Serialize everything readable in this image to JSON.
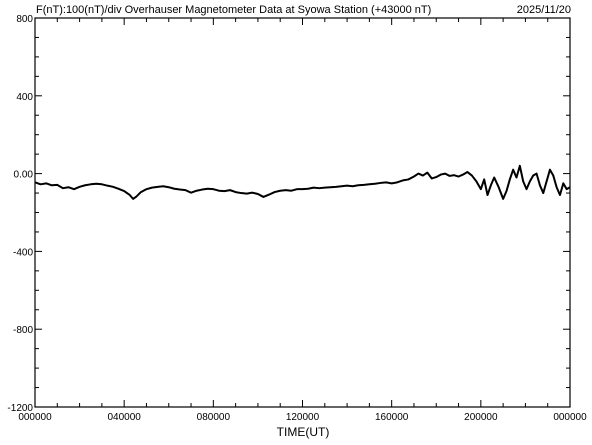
{
  "header": {
    "left_title": "F(nT):100(nT)/div  Overhauser Magnetometer Data at Syowa Station (+43000 nT)",
    "date": "2025/11/20"
  },
  "chart_data": {
    "type": "line",
    "title": "F(nT):100(nT)/div  Overhauser Magnetometer Data at Syowa Station (+43000 nT)",
    "date_label": "2025/11/20",
    "xlabel": "TIME(UT)",
    "ylabel": "",
    "x_unit": "hours UT",
    "xlim": [
      0,
      24
    ],
    "ylim": [
      -1200,
      800
    ],
    "grid": false,
    "x_ticks": [
      {
        "value": 0,
        "label": "000000"
      },
      {
        "value": 4,
        "label": "040000"
      },
      {
        "value": 8,
        "label": "080000"
      },
      {
        "value": 12,
        "label": "120000"
      },
      {
        "value": 16,
        "label": "160000"
      },
      {
        "value": 20,
        "label": "200000"
      },
      {
        "value": 24,
        "label": "000000"
      }
    ],
    "y_ticks": [
      {
        "value": 800,
        "label": "800"
      },
      {
        "value": 400,
        "label": "400"
      },
      {
        "value": 0,
        "label": "0.00"
      },
      {
        "value": -400,
        "label": "-400"
      },
      {
        "value": -800,
        "label": "-800"
      },
      {
        "value": -1200,
        "label": "-1200"
      }
    ],
    "series": [
      {
        "color": "#000000",
        "points": [
          [
            0.0,
            -45
          ],
          [
            0.25,
            -55
          ],
          [
            0.5,
            -50
          ],
          [
            0.75,
            -60
          ],
          [
            1.0,
            -58
          ],
          [
            1.25,
            -75
          ],
          [
            1.5,
            -70
          ],
          [
            1.75,
            -80
          ],
          [
            2.0,
            -68
          ],
          [
            2.25,
            -60
          ],
          [
            2.5,
            -55
          ],
          [
            2.75,
            -52
          ],
          [
            3.0,
            -55
          ],
          [
            3.25,
            -62
          ],
          [
            3.5,
            -68
          ],
          [
            3.75,
            -78
          ],
          [
            4.0,
            -90
          ],
          [
            4.25,
            -110
          ],
          [
            4.4,
            -130
          ],
          [
            4.55,
            -118
          ],
          [
            4.75,
            -95
          ],
          [
            5.0,
            -80
          ],
          [
            5.25,
            -72
          ],
          [
            5.5,
            -68
          ],
          [
            5.75,
            -65
          ],
          [
            6.0,
            -70
          ],
          [
            6.25,
            -78
          ],
          [
            6.5,
            -82
          ],
          [
            6.75,
            -85
          ],
          [
            7.0,
            -98
          ],
          [
            7.25,
            -88
          ],
          [
            7.5,
            -82
          ],
          [
            7.75,
            -78
          ],
          [
            8.0,
            -80
          ],
          [
            8.25,
            -88
          ],
          [
            8.5,
            -90
          ],
          [
            8.75,
            -85
          ],
          [
            9.0,
            -95
          ],
          [
            9.25,
            -100
          ],
          [
            9.5,
            -103
          ],
          [
            9.75,
            -98
          ],
          [
            10.0,
            -105
          ],
          [
            10.25,
            -120
          ],
          [
            10.5,
            -108
          ],
          [
            10.75,
            -95
          ],
          [
            11.0,
            -88
          ],
          [
            11.25,
            -85
          ],
          [
            11.5,
            -88
          ],
          [
            11.75,
            -80
          ],
          [
            12.0,
            -80
          ],
          [
            12.25,
            -78
          ],
          [
            12.5,
            -72
          ],
          [
            12.75,
            -75
          ],
          [
            13.0,
            -72
          ],
          [
            13.25,
            -70
          ],
          [
            13.5,
            -68
          ],
          [
            13.75,
            -65
          ],
          [
            14.0,
            -62
          ],
          [
            14.25,
            -65
          ],
          [
            14.5,
            -60
          ],
          [
            14.75,
            -58
          ],
          [
            15.0,
            -55
          ],
          [
            15.25,
            -52
          ],
          [
            15.5,
            -48
          ],
          [
            15.75,
            -45
          ],
          [
            16.0,
            -50
          ],
          [
            16.25,
            -45
          ],
          [
            16.5,
            -35
          ],
          [
            16.75,
            -30
          ],
          [
            17.0,
            -15
          ],
          [
            17.2,
            0
          ],
          [
            17.4,
            -10
          ],
          [
            17.6,
            5
          ],
          [
            17.8,
            -25
          ],
          [
            18.0,
            -18
          ],
          [
            18.2,
            -5
          ],
          [
            18.4,
            0
          ],
          [
            18.6,
            -12
          ],
          [
            18.8,
            -8
          ],
          [
            19.0,
            -15
          ],
          [
            19.2,
            -5
          ],
          [
            19.4,
            8
          ],
          [
            19.6,
            -10
          ],
          [
            19.8,
            -40
          ],
          [
            20.0,
            -80
          ],
          [
            20.15,
            -30
          ],
          [
            20.3,
            -110
          ],
          [
            20.45,
            -60
          ],
          [
            20.6,
            -20
          ],
          [
            20.8,
            -70
          ],
          [
            21.0,
            -130
          ],
          [
            21.15,
            -90
          ],
          [
            21.3,
            -30
          ],
          [
            21.45,
            20
          ],
          [
            21.6,
            -20
          ],
          [
            21.75,
            40
          ],
          [
            21.9,
            -40
          ],
          [
            22.05,
            -80
          ],
          [
            22.2,
            -40
          ],
          [
            22.35,
            -10
          ],
          [
            22.5,
            0
          ],
          [
            22.65,
            -60
          ],
          [
            22.8,
            -100
          ],
          [
            22.95,
            -40
          ],
          [
            23.1,
            20
          ],
          [
            23.25,
            -10
          ],
          [
            23.4,
            -70
          ],
          [
            23.55,
            -110
          ],
          [
            23.7,
            -50
          ],
          [
            23.85,
            -80
          ],
          [
            24.0,
            -70
          ]
        ]
      }
    ]
  }
}
